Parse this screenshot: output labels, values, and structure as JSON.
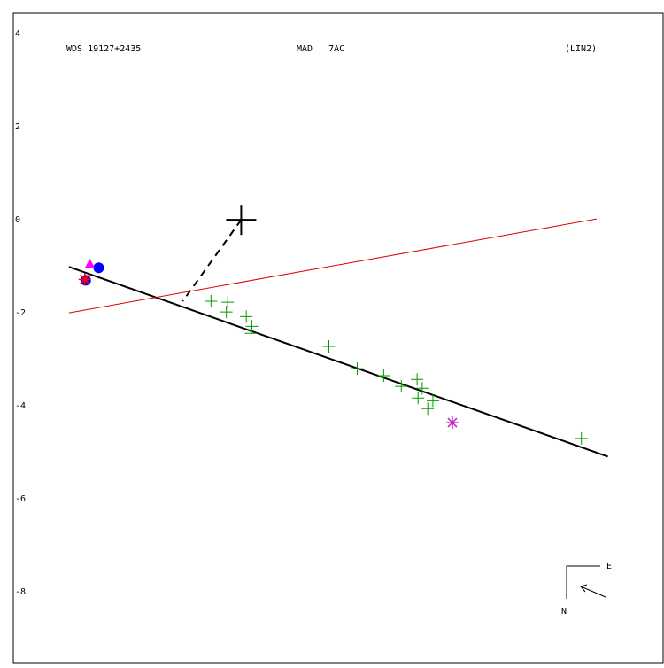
{
  "chart_data": {
    "type": "scatter",
    "header": [
      "WDS 19127+2435",
      "MAD   7AC",
      "(LIN2)"
    ],
    "compass": [
      "E",
      "N"
    ],
    "xlim": [
      -4.91,
      9.09
    ],
    "ylim": [
      -9.52,
      4.44
    ],
    "yticks": [
      4,
      2,
      0,
      -2,
      -4,
      -6,
      -8
    ],
    "lines": [
      {
        "color": "#000000",
        "width": 2,
        "x": [
          -3.71,
          7.9
        ],
        "values": [
          -1.01,
          -5.09
        ]
      },
      {
        "color": "#dd0000",
        "width": 1,
        "x": [
          -3.71,
          7.66
        ],
        "values": [
          -2.0,
          0.02
        ]
      },
      {
        "color": "#000000",
        "width": 2,
        "dash": true,
        "x": [
          0,
          -1.26
        ],
        "values": [
          0,
          -1.75
        ]
      }
    ],
    "series": [
      {
        "color": "#009900",
        "marker": "plus",
        "x": [
          -0.65,
          -0.29,
          -0.32,
          0.11,
          0.23,
          0.21,
          1.89,
          2.5,
          3.07,
          3.45,
          3.79,
          3.9,
          3.81,
          4.02,
          4.13,
          7.33
        ],
        "values": [
          -1.75,
          -1.77,
          -1.98,
          -2.08,
          -2.29,
          -2.44,
          -2.72,
          -3.2,
          -3.35,
          -3.58,
          -3.43,
          -3.62,
          -3.83,
          -4.06,
          -3.89,
          -4.7
        ]
      },
      {
        "color": "#cc22cc",
        "marker": "star",
        "x": [
          4.55
        ],
        "values": [
          -4.36
        ]
      },
      {
        "color": "#0000ff",
        "marker": "circle",
        "x": [
          -3.35,
          -3.07
        ],
        "values": [
          -1.3,
          -1.03
        ]
      },
      {
        "color": "#ff00ff",
        "marker": "triangle",
        "x": [
          -3.26
        ],
        "values": [
          -0.95
        ]
      },
      {
        "color": "#ff0000",
        "marker": "star",
        "x": [
          -3.37
        ],
        "values": [
          -1.28
        ]
      }
    ]
  }
}
